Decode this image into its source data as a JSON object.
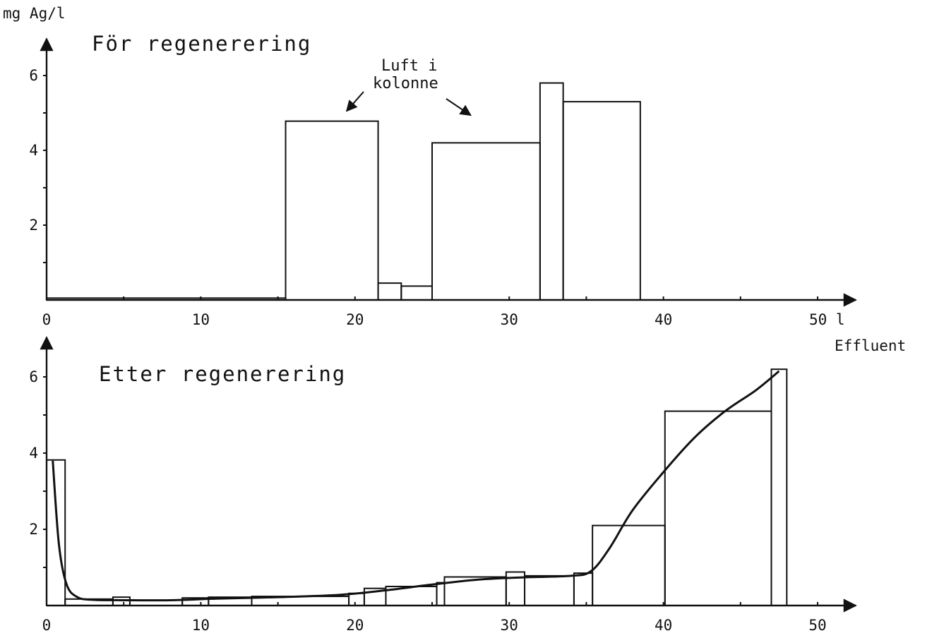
{
  "figure": {
    "ylabel": "mg Ag/l",
    "xlabel": "Effluent",
    "x_unit": "l",
    "colors": {
      "ink": "#111111",
      "background": "#ffffff"
    }
  },
  "chart_data": [
    {
      "type": "bar",
      "title": "För regenerering",
      "xlabel": "Effluent",
      "ylabel": "mg Ag/l",
      "xlim": [
        0,
        50
      ],
      "ylim": [
        0,
        6.5
      ],
      "x_ticks": [
        "0",
        "10",
        "20",
        "30",
        "40",
        "50 l"
      ],
      "y_ticks": [
        "2",
        "4",
        "6"
      ],
      "grid": false,
      "bars": [
        {
          "x0": 0,
          "x1": 15.5,
          "value": 0.05
        },
        {
          "x0": 15.5,
          "x1": 21.5,
          "value": 4.78
        },
        {
          "x0": 21.5,
          "x1": 23.0,
          "value": 0.45
        },
        {
          "x0": 23.0,
          "x1": 25.0,
          "value": 0.37
        },
        {
          "x0": 25.0,
          "x1": 32.0,
          "value": 4.2
        },
        {
          "x0": 32.0,
          "x1": 33.5,
          "value": 5.8
        },
        {
          "x0": 33.5,
          "x1": 38.5,
          "value": 5.3
        }
      ],
      "annotations": [
        {
          "text_lines": [
            "Luft i",
            "kolonne"
          ],
          "points_to": [
            {
              "x": 19.0,
              "y": 4.9
            },
            {
              "x": 27.5,
              "y": 4.75
            }
          ]
        }
      ]
    },
    {
      "type": "bar",
      "title": "Etter regenerering",
      "xlabel": "Effluent",
      "ylabel": "mg Ag/l",
      "xlim": [
        0,
        50
      ],
      "ylim": [
        0,
        6.5
      ],
      "x_ticks": [
        "0",
        "10",
        "20",
        "30",
        "40",
        "50"
      ],
      "y_ticks": [
        "2",
        "4",
        "6"
      ],
      "grid": false,
      "bars": [
        {
          "x0": 0,
          "x1": 1.2,
          "value": 3.82
        },
        {
          "x0": 1.2,
          "x1": 4.3,
          "value": 0.17
        },
        {
          "x0": 4.3,
          "x1": 5.4,
          "value": 0.22
        },
        {
          "x0": 5.4,
          "x1": 8.8,
          "value": 0.14
        },
        {
          "x0": 8.8,
          "x1": 10.5,
          "value": 0.2
        },
        {
          "x0": 10.5,
          "x1": 13.3,
          "value": 0.22
        },
        {
          "x0": 13.3,
          "x1": 19.6,
          "value": 0.24
        },
        {
          "x0": 19.6,
          "x1": 20.6,
          "value": 0.32
        },
        {
          "x0": 20.6,
          "x1": 22.0,
          "value": 0.45
        },
        {
          "x0": 22.0,
          "x1": 25.3,
          "value": 0.5
        },
        {
          "x0": 25.3,
          "x1": 25.8,
          "value": 0.6
        },
        {
          "x0": 25.8,
          "x1": 29.8,
          "value": 0.75
        },
        {
          "x0": 29.8,
          "x1": 31.0,
          "value": 0.88
        },
        {
          "x0": 31.0,
          "x1": 34.2,
          "value": 0.78
        },
        {
          "x0": 34.2,
          "x1": 35.4,
          "value": 0.85
        },
        {
          "x0": 35.4,
          "x1": 40.1,
          "value": 2.1
        },
        {
          "x0": 40.1,
          "x1": 47.0,
          "value": 5.1
        },
        {
          "x0": 47.0,
          "x1": 48.0,
          "value": 6.2
        }
      ],
      "smooth_curve": [
        {
          "x": 0.4,
          "y": 3.8
        },
        {
          "x": 0.8,
          "y": 1.6
        },
        {
          "x": 1.3,
          "y": 0.55
        },
        {
          "x": 2.0,
          "y": 0.22
        },
        {
          "x": 3.0,
          "y": 0.15
        },
        {
          "x": 5.0,
          "y": 0.14
        },
        {
          "x": 8.0,
          "y": 0.14
        },
        {
          "x": 11.0,
          "y": 0.18
        },
        {
          "x": 15.0,
          "y": 0.22
        },
        {
          "x": 19.0,
          "y": 0.28
        },
        {
          "x": 22.0,
          "y": 0.4
        },
        {
          "x": 25.0,
          "y": 0.55
        },
        {
          "x": 28.0,
          "y": 0.68
        },
        {
          "x": 31.0,
          "y": 0.74
        },
        {
          "x": 34.0,
          "y": 0.78
        },
        {
          "x": 35.3,
          "y": 0.9
        },
        {
          "x": 36.5,
          "y": 1.5
        },
        {
          "x": 38.0,
          "y": 2.5
        },
        {
          "x": 40.0,
          "y": 3.5
        },
        {
          "x": 42.0,
          "y": 4.4
        },
        {
          "x": 44.0,
          "y": 5.1
        },
        {
          "x": 46.0,
          "y": 5.65
        },
        {
          "x": 47.5,
          "y": 6.15
        }
      ]
    }
  ]
}
